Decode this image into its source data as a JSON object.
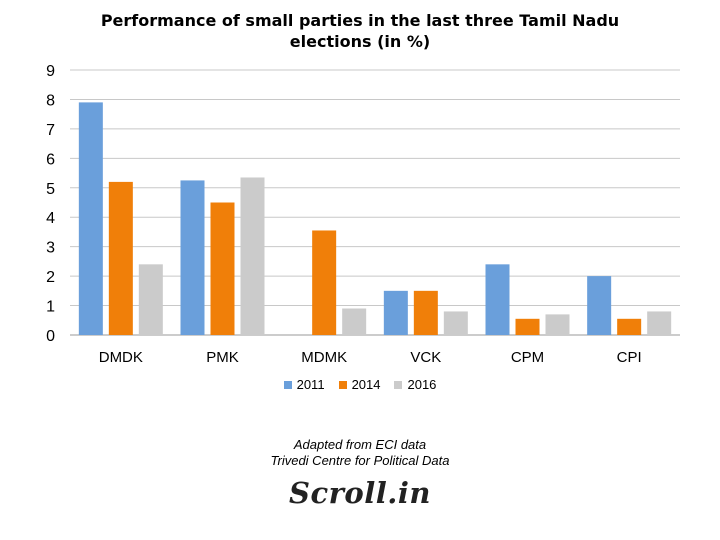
{
  "chart_data": {
    "type": "bar",
    "title": "Performance of small parties in the last three Tamil Nadu elections (in %)",
    "title_line1": "Performance of small parties in the last three Tamil Nadu",
    "title_line2": "elections (in %)",
    "categories": [
      "DMDK",
      "PMK",
      "MDMK",
      "VCK",
      "CPM",
      "CPI"
    ],
    "series": [
      {
        "name": "2011",
        "color": "#6A9FDB",
        "values": [
          7.9,
          5.25,
          null,
          1.5,
          2.4,
          2.0
        ]
      },
      {
        "name": "2014",
        "color": "#F07F09",
        "values": [
          5.2,
          4.5,
          3.55,
          1.5,
          0.55,
          0.55
        ]
      },
      {
        "name": "2016",
        "color": "#CBCBCB",
        "values": [
          2.4,
          5.35,
          0.9,
          0.8,
          0.7,
          0.8
        ]
      }
    ],
    "ylim": [
      0,
      9
    ],
    "yticks": [
      "0",
      "1",
      "2",
      "3",
      "4",
      "5",
      "6",
      "7",
      "8",
      "9"
    ],
    "grid": true,
    "legend_position": "bottom"
  },
  "source_line1": "Adapted from ECI data",
  "source_line2": "Trivedi Centre for Political Data",
  "logo_text": "Scroll.in"
}
